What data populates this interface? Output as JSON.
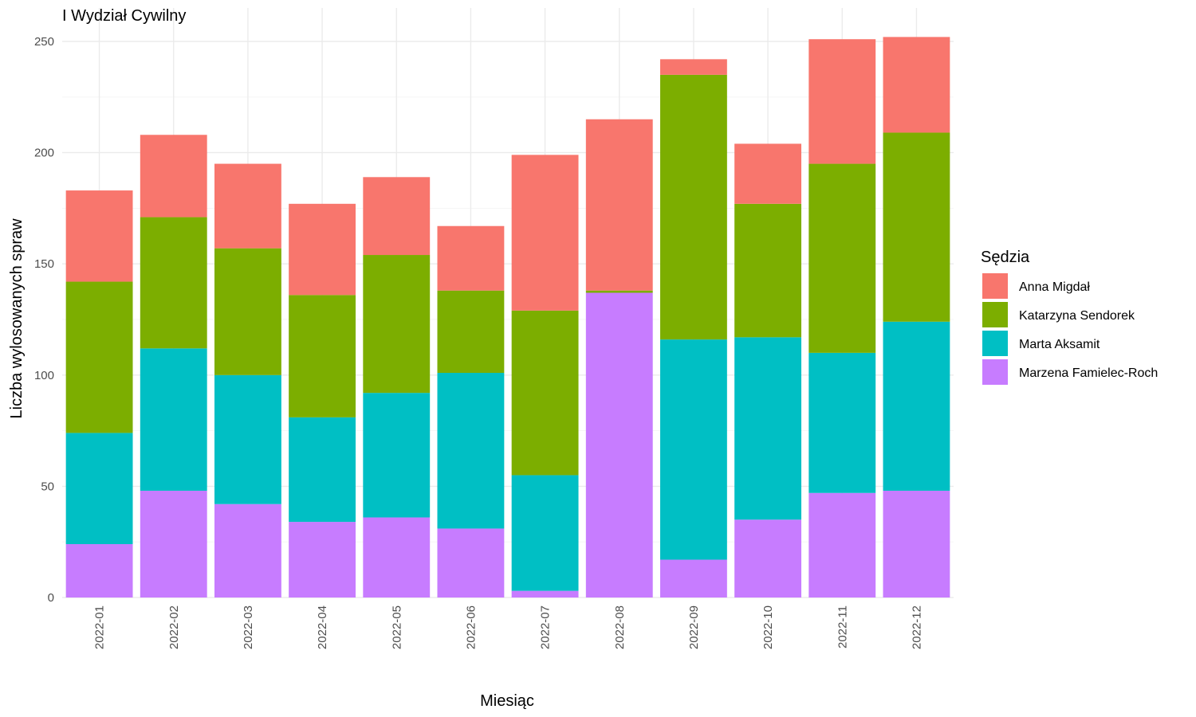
{
  "chart_data": {
    "type": "bar",
    "stacked": true,
    "title": "I Wydział Cywilny",
    "xlabel": "Miesiąc",
    "ylabel": "Liczba wylosowanych spraw",
    "ylim": [
      0,
      265
    ],
    "yticks": [
      0,
      50,
      100,
      150,
      200,
      250
    ],
    "grid": true,
    "legend_position": "right",
    "legend_title": "Sędzia",
    "categories": [
      "2022-01",
      "2022-02",
      "2022-03",
      "2022-04",
      "2022-05",
      "2022-06",
      "2022-07",
      "2022-08",
      "2022-09",
      "2022-10",
      "2022-11",
      "2022-12"
    ],
    "series": [
      {
        "name": "Anna Migdał",
        "color": "#F8766D",
        "values": [
          41,
          37,
          38,
          41,
          35,
          29,
          70,
          77,
          7,
          27,
          56,
          43
        ]
      },
      {
        "name": "Katarzyna Sendorek",
        "color": "#7CAE00",
        "values": [
          68,
          59,
          57,
          55,
          62,
          37,
          74,
          1,
          119,
          60,
          85,
          85
        ]
      },
      {
        "name": "Marta Aksamit",
        "color": "#00BFC4",
        "values": [
          50,
          64,
          58,
          47,
          56,
          70,
          52,
          0,
          99,
          82,
          63,
          76
        ]
      },
      {
        "name": "Marzena Famielec-Roch",
        "color": "#C77CFF",
        "values": [
          24,
          48,
          42,
          34,
          36,
          31,
          3,
          137,
          17,
          35,
          47,
          48
        ]
      }
    ]
  }
}
